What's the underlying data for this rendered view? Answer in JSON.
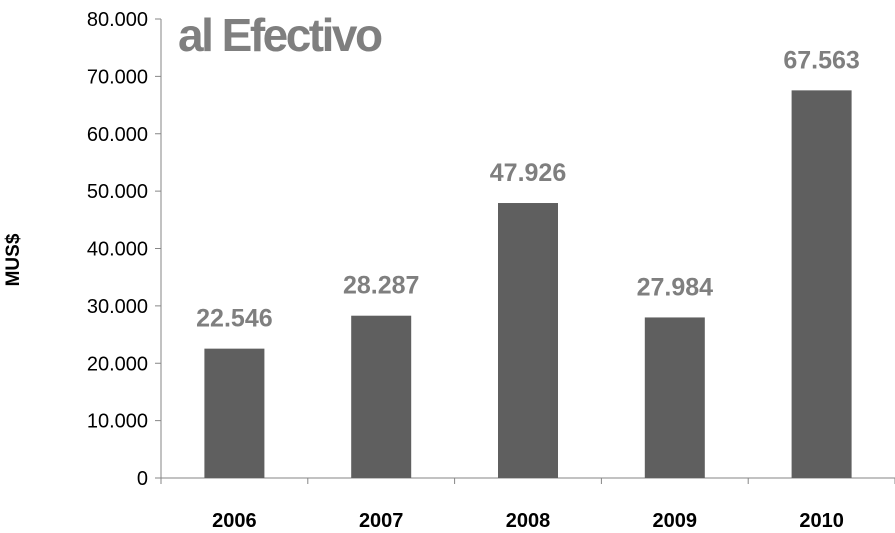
{
  "chart_data": {
    "type": "bar",
    "title": "al Efectivo",
    "xlabel": "",
    "ylabel": "MUS$",
    "categories": [
      "2006",
      "2007",
      "2008",
      "2009",
      "2010"
    ],
    "values": [
      22546,
      28287,
      47926,
      27984,
      67563
    ],
    "value_labels": [
      "22.546",
      "28.287",
      "47.926",
      "27.984",
      "67.563"
    ],
    "ylim": [
      0,
      80000
    ],
    "yticks": [
      0,
      10000,
      20000,
      30000,
      40000,
      50000,
      60000,
      70000,
      80000
    ],
    "ytick_labels": [
      "0",
      "10.000",
      "20.000",
      "30.000",
      "40.000",
      "50.000",
      "60.000",
      "70.000",
      "80.000"
    ],
    "grid": false,
    "legend": "none",
    "colors": {
      "bar": "#5f5f5f",
      "value_label": "#7f7f7f",
      "title": "#7f7f7f",
      "axis": "#868686"
    }
  }
}
